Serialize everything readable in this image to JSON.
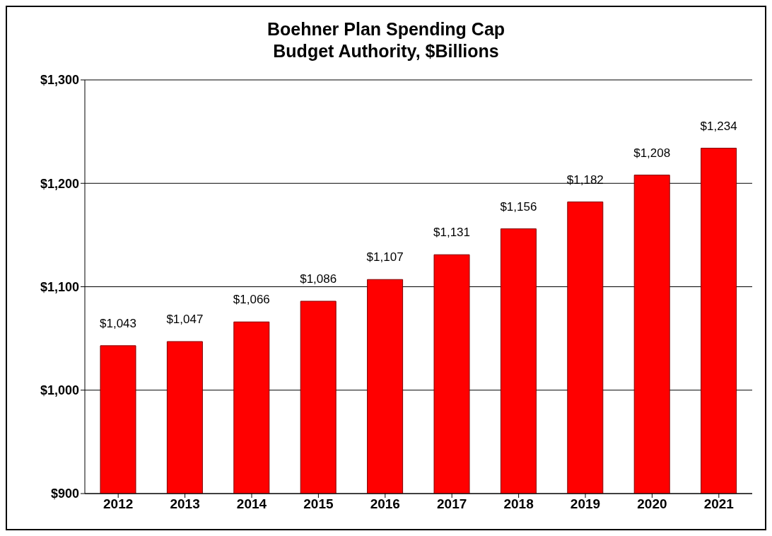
{
  "chart_data": {
    "type": "bar",
    "title": "Boehner Plan Spending Cap",
    "subtitle": "Budget Authority, $Billions",
    "categories": [
      "2012",
      "2013",
      "2014",
      "2015",
      "2016",
      "2017",
      "2018",
      "2019",
      "2020",
      "2021"
    ],
    "values": [
      1043,
      1047,
      1066,
      1086,
      1107,
      1131,
      1156,
      1182,
      1208,
      1234
    ],
    "value_labels": [
      "$1,043",
      "$1,047",
      "$1,066",
      "$1,086",
      "$1,107",
      "$1,131",
      "$1,156",
      "$1,182",
      "$1,208",
      "$1,234"
    ],
    "color": "#ff0000",
    "ylim": [
      900,
      1300
    ],
    "yticks": [
      {
        "value": 900,
        "label": "$900"
      },
      {
        "value": 1000,
        "label": "$1,000"
      },
      {
        "value": 1100,
        "label": "$1,100"
      },
      {
        "value": 1200,
        "label": "$1,200"
      },
      {
        "value": 1300,
        "label": "$1,300"
      }
    ],
    "grid": "y",
    "legend": false
  }
}
